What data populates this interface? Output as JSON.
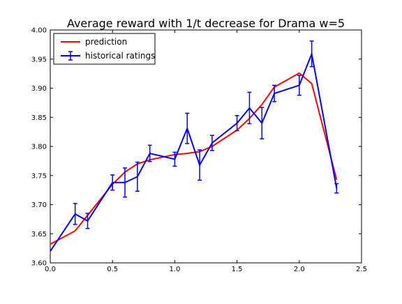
{
  "chart_data": {
    "type": "line",
    "title": "Average reward with 1/t decrease for Drama w=5",
    "xlabel": "",
    "ylabel": "",
    "xlim": [
      0.0,
      2.5
    ],
    "ylim": [
      3.6,
      4.0
    ],
    "x_ticks": [
      0.0,
      0.5,
      1.0,
      1.5,
      2.0,
      2.5
    ],
    "x_tick_labels": [
      "0.0",
      "0.5",
      "1.0",
      "1.5",
      "2.0",
      "2.5"
    ],
    "y_ticks": [
      3.6,
      3.65,
      3.7,
      3.75,
      3.8,
      3.85,
      3.9,
      3.95,
      4.0
    ],
    "y_tick_labels": [
      "3.60",
      "3.65",
      "3.70",
      "3.75",
      "3.80",
      "3.85",
      "3.90",
      "3.95",
      "4.00"
    ],
    "grid": false,
    "legend_position": "top-left",
    "series": [
      {
        "name": "prediction",
        "color": "#ff0000",
        "style": "line",
        "points": [
          {
            "x": 0.0,
            "y": 3.632
          },
          {
            "x": 0.2,
            "y": 3.655
          },
          {
            "x": 0.5,
            "y": 3.735
          },
          {
            "x": 0.6,
            "y": 3.756
          },
          {
            "x": 0.7,
            "y": 3.77
          },
          {
            "x": 0.8,
            "y": 3.777
          },
          {
            "x": 1.0,
            "y": 3.786
          },
          {
            "x": 1.1,
            "y": 3.788
          },
          {
            "x": 1.2,
            "y": 3.791
          },
          {
            "x": 1.3,
            "y": 3.8
          },
          {
            "x": 1.5,
            "y": 3.828
          },
          {
            "x": 1.6,
            "y": 3.848
          },
          {
            "x": 1.7,
            "y": 3.872
          },
          {
            "x": 1.8,
            "y": 3.902
          },
          {
            "x": 2.0,
            "y": 3.926
          },
          {
            "x": 2.1,
            "y": 3.908
          },
          {
            "x": 2.3,
            "y": 3.743
          }
        ]
      },
      {
        "name": "historical ratings",
        "color": "#0000ff",
        "style": "errorbar",
        "points": [
          {
            "x": 0.0,
            "y": 3.62,
            "err": 0.0
          },
          {
            "x": 0.2,
            "y": 3.684,
            "err": 0.018
          },
          {
            "x": 0.3,
            "y": 3.672,
            "err": 0.013
          },
          {
            "x": 0.5,
            "y": 3.738,
            "err": 0.013
          },
          {
            "x": 0.6,
            "y": 3.738,
            "err": 0.025
          },
          {
            "x": 0.7,
            "y": 3.748,
            "err": 0.025
          },
          {
            "x": 0.8,
            "y": 3.788,
            "err": 0.014
          },
          {
            "x": 1.0,
            "y": 3.778,
            "err": 0.012
          },
          {
            "x": 1.1,
            "y": 3.831,
            "err": 0.026
          },
          {
            "x": 1.2,
            "y": 3.768,
            "err": 0.026
          },
          {
            "x": 1.3,
            "y": 3.806,
            "err": 0.013
          },
          {
            "x": 1.5,
            "y": 3.84,
            "err": 0.013
          },
          {
            "x": 1.6,
            "y": 3.866,
            "err": 0.027
          },
          {
            "x": 1.7,
            "y": 3.84,
            "err": 0.027
          },
          {
            "x": 1.8,
            "y": 3.891,
            "err": 0.014
          },
          {
            "x": 2.0,
            "y": 3.905,
            "err": 0.017
          },
          {
            "x": 2.1,
            "y": 3.959,
            "err": 0.022
          },
          {
            "x": 2.3,
            "y": 3.728,
            "err": 0.008
          }
        ]
      }
    ]
  }
}
